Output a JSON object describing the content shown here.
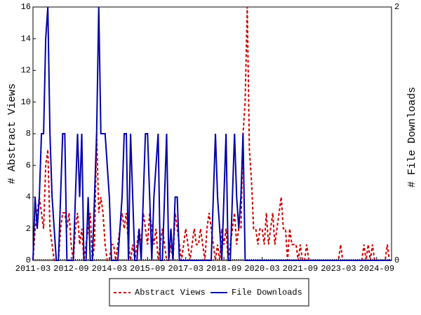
{
  "chart_data": {
    "type": "line",
    "x": [
      "2011-03",
      "2011-04",
      "2011-05",
      "2011-06",
      "2011-07",
      "2011-08",
      "2011-09",
      "2011-10",
      "2011-11",
      "2011-12",
      "2012-01",
      "2012-02",
      "2012-03",
      "2012-04",
      "2012-05",
      "2012-06",
      "2012-07",
      "2012-08",
      "2012-09",
      "2012-10",
      "2012-11",
      "2012-12",
      "2013-01",
      "2013-02",
      "2013-03",
      "2013-04",
      "2013-05",
      "2013-06",
      "2013-07",
      "2013-08",
      "2013-09",
      "2013-10",
      "2013-11",
      "2013-12",
      "2014-01",
      "2014-02",
      "2014-03",
      "2014-04",
      "2014-05",
      "2014-06",
      "2014-07",
      "2014-08",
      "2014-09",
      "2014-10",
      "2014-11",
      "2014-12",
      "2015-01",
      "2015-02",
      "2015-03",
      "2015-04",
      "2015-05",
      "2015-06",
      "2015-07",
      "2015-08",
      "2015-09",
      "2015-10",
      "2015-11",
      "2015-12",
      "2016-01",
      "2016-02",
      "2016-03",
      "2016-04",
      "2016-05",
      "2016-06",
      "2016-07",
      "2016-08",
      "2016-09",
      "2016-10",
      "2016-11",
      "2016-12",
      "2017-01",
      "2017-02",
      "2017-03",
      "2017-04",
      "2017-05",
      "2017-06",
      "2017-07",
      "2017-08",
      "2017-09",
      "2017-10",
      "2017-11",
      "2017-12",
      "2018-01",
      "2018-02",
      "2018-03",
      "2018-04",
      "2018-05",
      "2018-06",
      "2018-07",
      "2018-08",
      "2018-09",
      "2018-10",
      "2018-11",
      "2018-12",
      "2019-01",
      "2019-02",
      "2019-03",
      "2019-04",
      "2019-05",
      "2019-06",
      "2019-07",
      "2019-08",
      "2019-09",
      "2019-10",
      "2019-11",
      "2019-12",
      "2020-01",
      "2020-02",
      "2020-03",
      "2020-04",
      "2020-05",
      "2020-06",
      "2020-07",
      "2020-08",
      "2020-09",
      "2020-10",
      "2020-11",
      "2020-12",
      "2021-01",
      "2021-02",
      "2021-03",
      "2021-04",
      "2021-05",
      "2021-06",
      "2021-07",
      "2021-08",
      "2021-09",
      "2021-10",
      "2021-11",
      "2021-12",
      "2022-01",
      "2022-02",
      "2022-03",
      "2022-04",
      "2022-05",
      "2022-06",
      "2022-07",
      "2022-08",
      "2022-09",
      "2022-10",
      "2022-11",
      "2022-12",
      "2023-01",
      "2023-02",
      "2023-03",
      "2023-04",
      "2023-05",
      "2023-06",
      "2023-07",
      "2023-08",
      "2023-09",
      "2023-10",
      "2023-11",
      "2023-12",
      "2024-01",
      "2024-02",
      "2024-03",
      "2024-04",
      "2024-05",
      "2024-06",
      "2024-07",
      "2024-08",
      "2024-09",
      "2024-10",
      "2024-11",
      "2024-12",
      "2025-01",
      "2025-02",
      "2025-03",
      "2025-04"
    ],
    "series": [
      {
        "name": "Abstract Views",
        "color": "#cc0000",
        "dash": true,
        "values": [
          0,
          2,
          3,
          4,
          3,
          2,
          6,
          7,
          2,
          1,
          0,
          0,
          0,
          2,
          3,
          3,
          2,
          3,
          1,
          0,
          2,
          3,
          1,
          2,
          0,
          1,
          2,
          3,
          0,
          1,
          8,
          3,
          4,
          3,
          1,
          0,
          0,
          1,
          1,
          0,
          1,
          2,
          3,
          2,
          3,
          1,
          0,
          1,
          0,
          1,
          2,
          1,
          3,
          2,
          1,
          3,
          2,
          1,
          2,
          0,
          1,
          2,
          1,
          0,
          0,
          1,
          0,
          3,
          2,
          1,
          0,
          1,
          2,
          1,
          0,
          1,
          2,
          1,
          1,
          2,
          1,
          0,
          2,
          3,
          2,
          1,
          0,
          1,
          0,
          2,
          1,
          2,
          0,
          1,
          2,
          3,
          1,
          2,
          2,
          8,
          10,
          16,
          7,
          5,
          2,
          2,
          1,
          2,
          2,
          1,
          3,
          1,
          2,
          3,
          1,
          2,
          3,
          4,
          2,
          2,
          0,
          2,
          1,
          1,
          1,
          0,
          1,
          0,
          0,
          1,
          0,
          0,
          0,
          0,
          0,
          0,
          0,
          0,
          0,
          0,
          0,
          0,
          0,
          0,
          0,
          1,
          0,
          0,
          0,
          0,
          0,
          0,
          0,
          0,
          0,
          0,
          1,
          0,
          1,
          0,
          1,
          0,
          0,
          0,
          0,
          0,
          0,
          1,
          0,
          0
        ]
      },
      {
        "name": "File Downloads",
        "color": "#0000aa",
        "axis": "y2",
        "values": [
          0,
          0.5,
          0.25,
          0.5,
          1,
          1,
          1.75,
          2,
          1,
          0.5,
          0.25,
          0,
          0,
          0.5,
          1,
          1,
          0,
          0,
          0,
          0,
          0.5,
          1,
          0.5,
          1,
          0,
          0,
          0.5,
          0,
          0,
          0.5,
          1,
          2,
          1,
          1,
          1,
          0.75,
          0.5,
          0,
          0,
          0,
          0,
          0.25,
          0.5,
          1,
          1,
          0,
          1,
          0.5,
          0,
          0,
          0.25,
          0,
          0.5,
          1,
          1,
          0.5,
          0,
          0.5,
          0.75,
          1,
          0,
          0,
          0.5,
          1,
          0,
          0.25,
          0,
          0.5,
          0.5,
          0,
          0,
          0,
          0,
          0,
          0,
          0,
          0,
          0,
          0,
          0,
          0,
          0,
          0,
          0,
          0,
          0.5,
          1,
          0.5,
          0.25,
          0,
          0.5,
          1,
          0,
          0,
          0.5,
          1,
          0.5,
          0.25,
          0.5,
          1,
          0,
          0,
          0,
          0,
          0,
          0,
          0,
          0,
          0,
          0,
          0,
          0,
          0,
          0,
          0,
          0,
          0,
          0,
          0,
          0,
          0,
          0,
          0,
          0,
          0,
          0,
          0,
          0,
          0,
          0,
          0,
          0,
          0,
          0,
          0,
          0,
          0,
          0,
          0,
          0,
          0,
          0,
          0,
          0,
          0,
          0,
          0,
          0,
          0,
          0,
          0,
          0,
          0,
          0,
          0,
          0,
          0,
          0,
          0,
          0,
          0,
          0,
          0,
          0,
          0,
          0,
          0,
          0,
          0,
          0
        ]
      }
    ],
    "xlim": [
      "2011-03",
      "2025-04"
    ],
    "xticks": [
      "2011-03",
      "2012-09",
      "2014-03",
      "2015-09",
      "2017-03",
      "2018-09",
      "2020-03",
      "2021-09",
      "2023-03",
      "2024-09"
    ],
    "ylim": [
      0,
      16
    ],
    "yticks": [
      0,
      2,
      4,
      6,
      8,
      10,
      12,
      14,
      16
    ],
    "y2lim": [
      0,
      2
    ],
    "y2ticks": [
      0,
      2
    ],
    "ylabel": "# Abstract Views",
    "y2label": "# File Downloads"
  }
}
